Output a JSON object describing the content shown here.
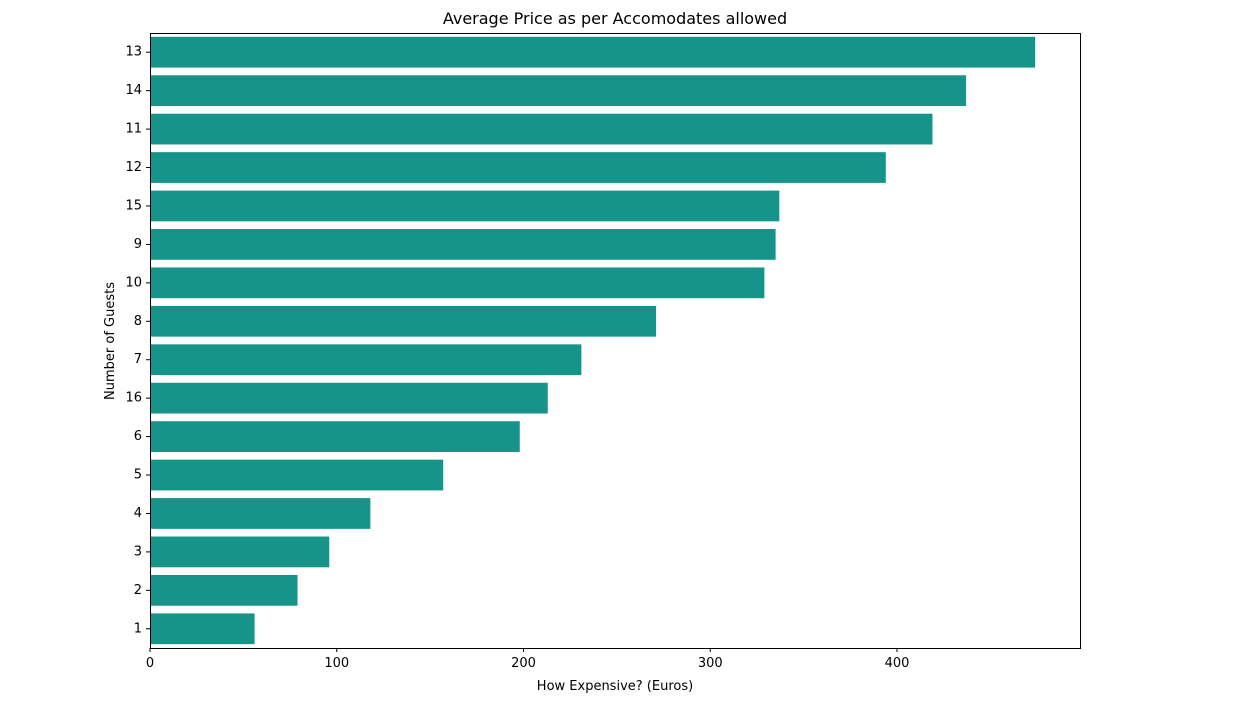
{
  "chart_data": {
    "type": "bar",
    "orientation": "horizontal",
    "title": "Average Price as per Accomodates allowed",
    "xlabel": "How Expensive? (Euros)",
    "ylabel": "Number of Guests",
    "categories": [
      "13",
      "14",
      "11",
      "12",
      "15",
      "9",
      "10",
      "8",
      "7",
      "16",
      "6",
      "5",
      "4",
      "3",
      "2",
      "1"
    ],
    "values": [
      474,
      437,
      419,
      394,
      337,
      335,
      329,
      271,
      231,
      213,
      198,
      157,
      118,
      96,
      79,
      56
    ],
    "xlim": [
      0,
      498
    ],
    "xticks": [
      0,
      100,
      200,
      300,
      400
    ],
    "grid": false,
    "legend": "none",
    "bar_color": "#169489"
  }
}
